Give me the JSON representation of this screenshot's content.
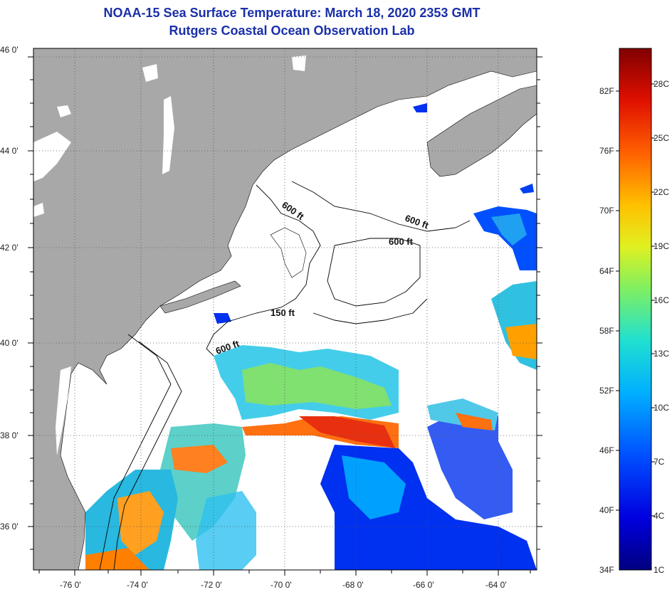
{
  "title": {
    "line1": "NOAA-15 Sea Surface Temperature:  March 18, 2020 2353 GMT",
    "line2": "Rutgers Coastal Ocean Observation Lab"
  },
  "axes": {
    "lat_ticks": [
      "46 0'",
      "44 0'",
      "42 0'",
      "40 0'",
      "38 0'",
      "36 0'"
    ],
    "lon_ticks": [
      "-76 0'",
      "-74 0'",
      "-72 0'",
      "-70 0'",
      "-68 0'",
      "-66 0'",
      "-64 0'"
    ]
  },
  "contour_labels": {
    "c1": "600 ft",
    "c2": "600 ft",
    "c3": "600 ft",
    "c4": "150 ft",
    "c5": "600 ft"
  },
  "colorbar": {
    "fahrenheit": [
      "82F",
      "76F",
      "70F",
      "64F",
      "58F",
      "52F",
      "46F",
      "40F",
      "34F"
    ],
    "celsius": [
      "28C",
      "25C",
      "22C",
      "19C",
      "16C",
      "13C",
      "10C",
      "7C",
      "4C",
      "1C"
    ]
  },
  "colors": {
    "land": "#a8a8a8",
    "water_nodata": "#ffffff",
    "title": "#1a2fa8"
  }
}
